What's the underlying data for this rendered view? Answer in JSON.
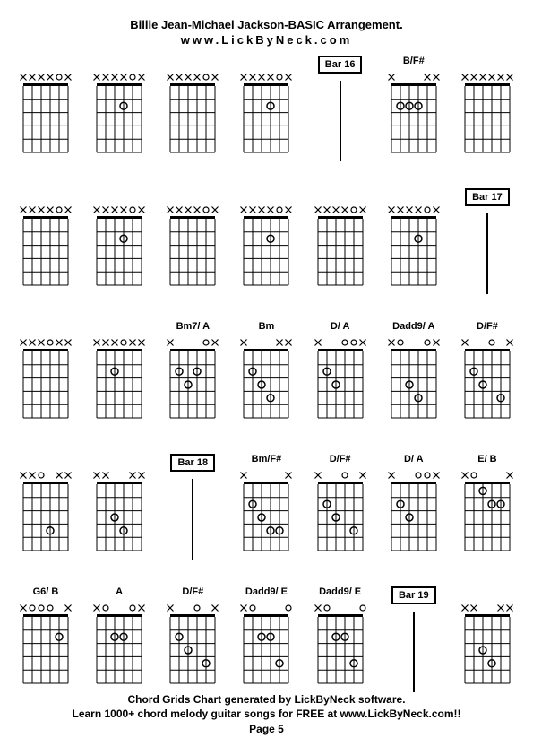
{
  "header": {
    "title": "Billie Jean-Michael Jackson-BASIC Arrangement.",
    "subtitle": "www.LickByNeck.com"
  },
  "footer": {
    "line1": "Chord Grids Chart generated by LickByNeck software.",
    "line2": "Learn 1000+ chord melody guitar songs for FREE at www.LickByNeck.com!!",
    "page": "Page 5"
  },
  "chord_style": {
    "width": 50,
    "height": 90,
    "num_frets": 5,
    "num_strings": 6,
    "line_color": "#000000",
    "line_width": 1,
    "dot_radius": 4,
    "mute_size": 7,
    "open_radius": 3,
    "bg": "#ffffff"
  },
  "rows": [
    [
      {
        "type": "chord",
        "label": "",
        "mutes": [
          0,
          1,
          2,
          3,
          5
        ],
        "opens": [
          4
        ],
        "dots": []
      },
      {
        "type": "chord",
        "label": "",
        "mutes": [
          0,
          1,
          2,
          3,
          5
        ],
        "opens": [
          4
        ],
        "dots": [
          {
            "s": 3,
            "f": 2
          }
        ]
      },
      {
        "type": "chord",
        "label": "",
        "mutes": [
          0,
          1,
          2,
          3,
          5
        ],
        "opens": [
          4
        ],
        "dots": []
      },
      {
        "type": "chord",
        "label": "",
        "mutes": [
          0,
          1,
          2,
          3,
          5
        ],
        "opens": [
          4
        ],
        "dots": [
          {
            "s": 3,
            "f": 2
          }
        ]
      },
      {
        "type": "bar",
        "label": "Bar 16"
      },
      {
        "type": "chord",
        "label": "B/F#",
        "mutes": [
          0,
          4,
          5
        ],
        "opens": [],
        "dots": [
          {
            "s": 1,
            "f": 2
          },
          {
            "s": 2,
            "f": 2
          },
          {
            "s": 3,
            "f": 2
          }
        ]
      },
      {
        "type": "chord",
        "label": "",
        "mutes": [
          0,
          1,
          2,
          3,
          4,
          5
        ],
        "opens": [],
        "dots": []
      }
    ],
    [
      {
        "type": "chord",
        "label": "",
        "mutes": [
          0,
          1,
          2,
          3,
          5
        ],
        "opens": [
          4
        ],
        "dots": []
      },
      {
        "type": "chord",
        "label": "",
        "mutes": [
          0,
          1,
          2,
          3,
          5
        ],
        "opens": [
          4
        ],
        "dots": [
          {
            "s": 3,
            "f": 2
          }
        ]
      },
      {
        "type": "chord",
        "label": "",
        "mutes": [
          0,
          1,
          2,
          3,
          5
        ],
        "opens": [
          4
        ],
        "dots": []
      },
      {
        "type": "chord",
        "label": "",
        "mutes": [
          0,
          1,
          2,
          3,
          5
        ],
        "opens": [
          4
        ],
        "dots": [
          {
            "s": 3,
            "f": 2
          }
        ]
      },
      {
        "type": "chord",
        "label": "",
        "mutes": [
          0,
          1,
          2,
          3,
          5
        ],
        "opens": [
          4
        ],
        "dots": []
      },
      {
        "type": "chord",
        "label": "",
        "mutes": [
          0,
          1,
          2,
          3,
          5
        ],
        "opens": [
          4
        ],
        "dots": [
          {
            "s": 3,
            "f": 2
          }
        ]
      },
      {
        "type": "bar",
        "label": "Bar 17"
      }
    ],
    [
      {
        "type": "chord",
        "label": "",
        "mutes": [
          0,
          1,
          2,
          4,
          5
        ],
        "opens": [
          3
        ],
        "dots": []
      },
      {
        "type": "chord",
        "label": "",
        "mutes": [
          0,
          1,
          2,
          4,
          5
        ],
        "opens": [
          3
        ],
        "dots": [
          {
            "s": 2,
            "f": 2
          }
        ]
      },
      {
        "type": "chord",
        "label": "Bm7/ A",
        "mutes": [
          0,
          5
        ],
        "opens": [
          4
        ],
        "dots": [
          {
            "s": 1,
            "f": 2
          },
          {
            "s": 2,
            "f": 3
          },
          {
            "s": 3,
            "f": 2
          }
        ]
      },
      {
        "type": "chord",
        "label": "Bm",
        "mutes": [
          0,
          4,
          5
        ],
        "opens": [],
        "dots": [
          {
            "s": 1,
            "f": 2
          },
          {
            "s": 2,
            "f": 3
          },
          {
            "s": 3,
            "f": 4
          }
        ]
      },
      {
        "type": "chord",
        "label": "D/ A",
        "mutes": [
          0,
          5
        ],
        "opens": [
          3,
          4
        ],
        "dots": [
          {
            "s": 1,
            "f": 2
          },
          {
            "s": 2,
            "f": 3
          }
        ]
      },
      {
        "type": "chord",
        "label": "Dadd9/ A",
        "mutes": [
          0,
          5
        ],
        "opens": [
          1,
          4
        ],
        "dots": [
          {
            "s": 2,
            "f": 3
          },
          {
            "s": 3,
            "f": 4
          }
        ]
      },
      {
        "type": "chord",
        "label": "D/F#",
        "mutes": [
          0,
          5
        ],
        "opens": [
          3
        ],
        "dots": [
          {
            "s": 1,
            "f": 2
          },
          {
            "s": 2,
            "f": 3
          },
          {
            "s": 4,
            "f": 4
          }
        ]
      }
    ],
    [
      {
        "type": "chord",
        "label": "",
        "mutes": [
          0,
          1,
          4,
          5
        ],
        "opens": [
          2
        ],
        "dots": [
          {
            "s": 3,
            "f": 4
          }
        ]
      },
      {
        "type": "chord",
        "label": "",
        "mutes": [
          0,
          1,
          4,
          5
        ],
        "opens": [],
        "dots": [
          {
            "s": 2,
            "f": 3
          },
          {
            "s": 3,
            "f": 4
          }
        ]
      },
      {
        "type": "bar",
        "label": "Bar 18"
      },
      {
        "type": "chord",
        "label": "Bm/F#",
        "mutes": [
          0,
          5
        ],
        "opens": [],
        "dots": [
          {
            "s": 1,
            "f": 2
          },
          {
            "s": 2,
            "f": 3
          },
          {
            "s": 3,
            "f": 4
          },
          {
            "s": 4,
            "f": 4
          }
        ]
      },
      {
        "type": "chord",
        "label": "D/F#",
        "mutes": [
          0,
          5
        ],
        "opens": [
          3
        ],
        "dots": [
          {
            "s": 1,
            "f": 2
          },
          {
            "s": 2,
            "f": 3
          },
          {
            "s": 4,
            "f": 4
          }
        ]
      },
      {
        "type": "chord",
        "label": "D/ A",
        "mutes": [
          0,
          5
        ],
        "opens": [
          3,
          4
        ],
        "dots": [
          {
            "s": 1,
            "f": 2
          },
          {
            "s": 2,
            "f": 3
          }
        ]
      },
      {
        "type": "chord",
        "label": "E/ B",
        "mutes": [
          0,
          5
        ],
        "opens": [
          1
        ],
        "dots": [
          {
            "s": 2,
            "f": 1
          },
          {
            "s": 3,
            "f": 2
          },
          {
            "s": 4,
            "f": 2
          }
        ]
      }
    ],
    [
      {
        "type": "chord",
        "label": "G6/ B",
        "mutes": [
          0,
          5
        ],
        "opens": [
          1,
          2,
          3
        ],
        "dots": [
          {
            "s": 4,
            "f": 2
          }
        ]
      },
      {
        "type": "chord",
        "label": "A",
        "mutes": [
          0,
          5
        ],
        "opens": [
          1,
          4
        ],
        "dots": [
          {
            "s": 2,
            "f": 2
          },
          {
            "s": 3,
            "f": 2
          }
        ]
      },
      {
        "type": "chord",
        "label": "D/F#",
        "mutes": [
          0,
          5
        ],
        "opens": [
          3
        ],
        "dots": [
          {
            "s": 1,
            "f": 2
          },
          {
            "s": 2,
            "f": 3
          },
          {
            "s": 4,
            "f": 4
          }
        ]
      },
      {
        "type": "chord",
        "label": "Dadd9/ E",
        "mutes": [
          0
        ],
        "opens": [
          1,
          5
        ],
        "dots": [
          {
            "s": 2,
            "f": 2
          },
          {
            "s": 3,
            "f": 2
          },
          {
            "s": 4,
            "f": 4
          }
        ]
      },
      {
        "type": "chord",
        "label": "Dadd9/ E",
        "mutes": [
          0
        ],
        "opens": [
          1,
          5
        ],
        "dots": [
          {
            "s": 2,
            "f": 2
          },
          {
            "s": 3,
            "f": 2
          },
          {
            "s": 4,
            "f": 4
          }
        ]
      },
      {
        "type": "bar",
        "label": "Bar 19"
      },
      {
        "type": "chord",
        "label": "",
        "mutes": [
          0,
          1,
          4,
          5
        ],
        "opens": [],
        "dots": [
          {
            "s": 2,
            "f": 3
          },
          {
            "s": 3,
            "f": 4
          }
        ]
      }
    ]
  ]
}
